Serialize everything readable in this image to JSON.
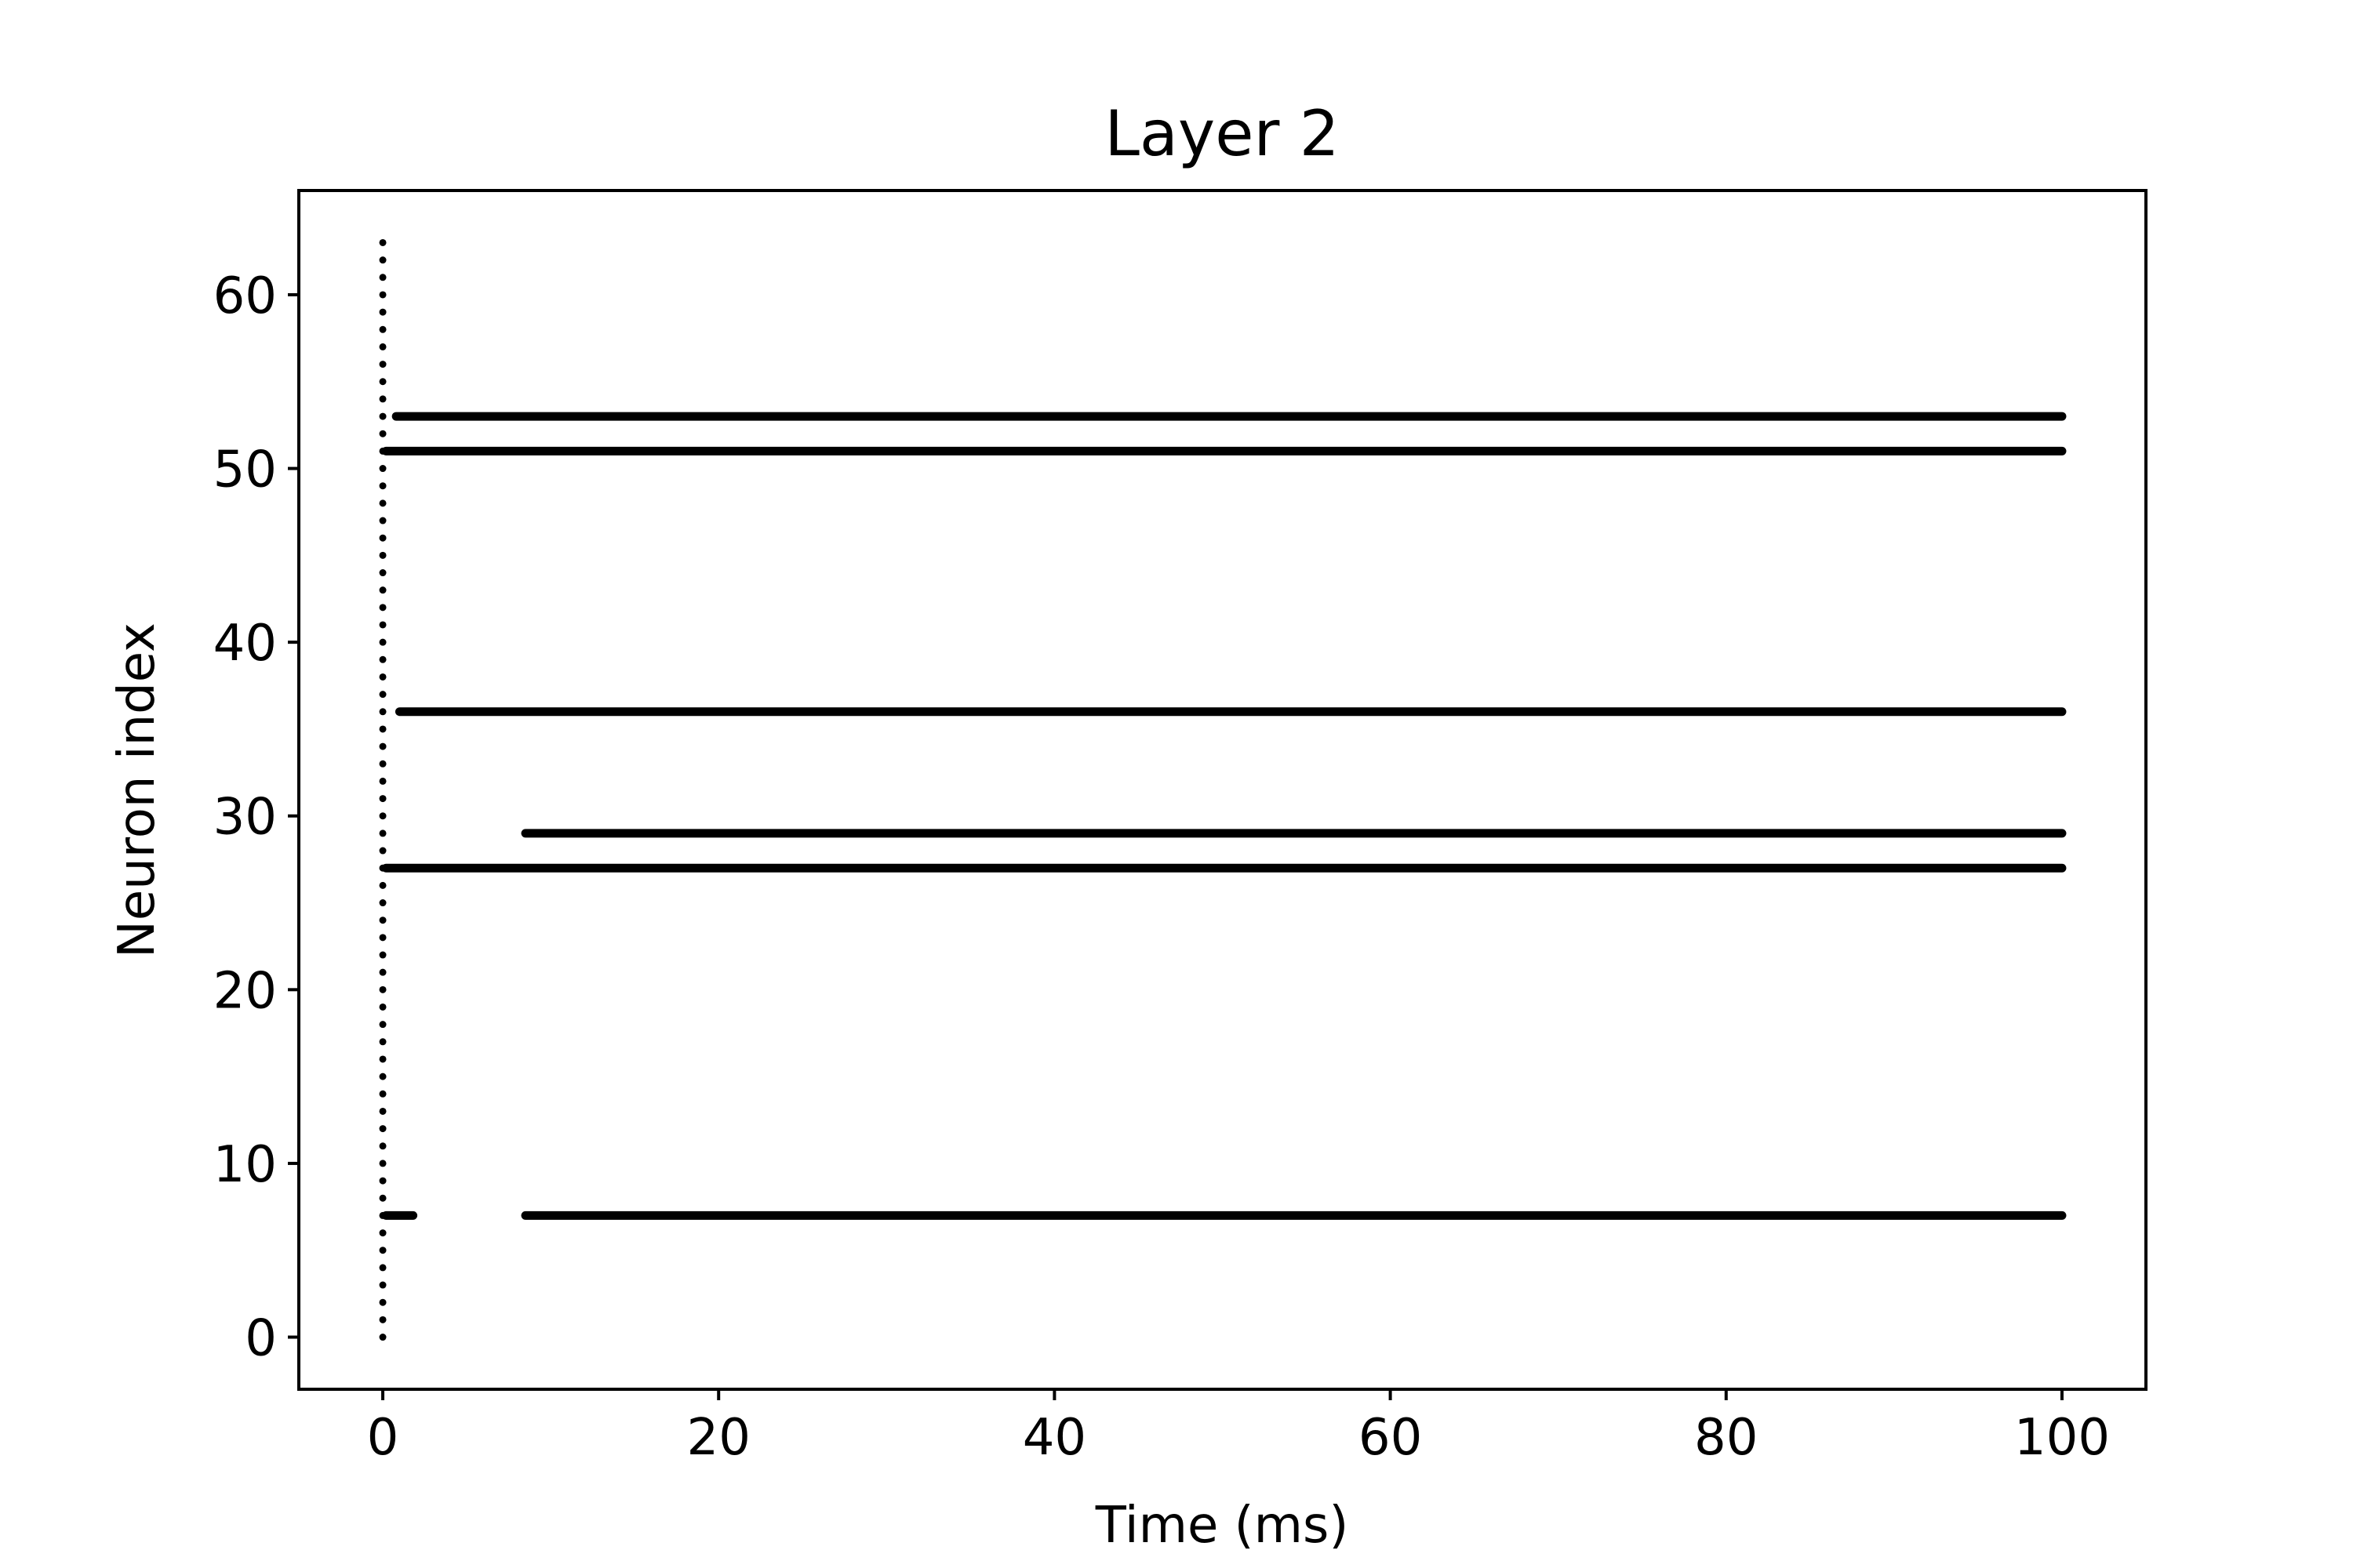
{
  "chart_data": {
    "type": "scatter",
    "title": "Layer 2",
    "xlabel": "Time (ms)",
    "ylabel": "Neuron index",
    "xlim": [
      -5,
      105
    ],
    "ylim": [
      -3,
      66
    ],
    "xticks": [
      0,
      20,
      40,
      60,
      80,
      100
    ],
    "yticks": [
      0,
      10,
      20,
      30,
      40,
      50,
      60
    ],
    "grid": false,
    "marker_color": "#000000",
    "initial_spikes": {
      "time_ms": 0,
      "neuron_min": 0,
      "neuron_max": 63,
      "description": "one spike per neuron at t=0"
    },
    "spike_trains": [
      {
        "neuron": 53,
        "start_ms": 0.8,
        "end_ms": 100
      },
      {
        "neuron": 51,
        "start_ms": 0.2,
        "end_ms": 100
      },
      {
        "neuron": 36,
        "start_ms": 1.0,
        "end_ms": 100
      },
      {
        "neuron": 29,
        "start_ms": 8.5,
        "end_ms": 100
      },
      {
        "neuron": 27,
        "start_ms": 0.2,
        "end_ms": 100
      },
      {
        "neuron": 7,
        "start_ms": 0.2,
        "end_ms": 1.8
      },
      {
        "neuron": 7,
        "start_ms": 8.5,
        "end_ms": 100
      }
    ]
  }
}
